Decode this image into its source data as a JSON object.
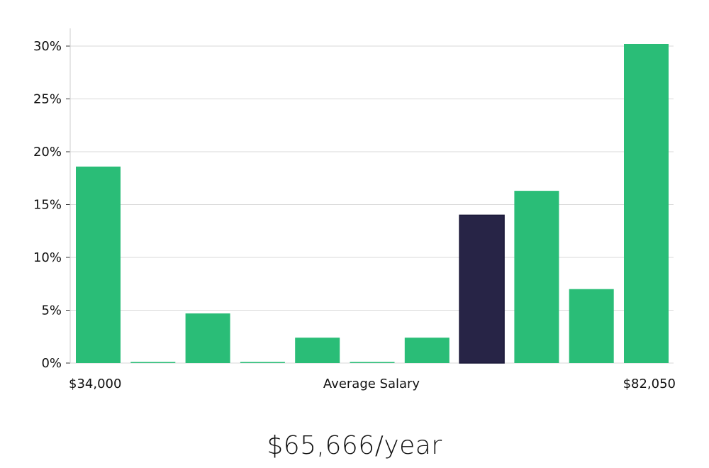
{
  "chart_data": {
    "type": "bar",
    "categories": [
      "1",
      "2",
      "3",
      "4",
      "5",
      "6",
      "7",
      "8",
      "9",
      "10",
      "11"
    ],
    "values": [
      18.6,
      0.1,
      4.7,
      0.1,
      2.4,
      0.1,
      2.4,
      14.0,
      16.3,
      7.0,
      30.2
    ],
    "highlight_index": 7,
    "xlabel": "Average Salary",
    "x_min_label": "$34,000",
    "x_max_label": "$82,050",
    "ylim": [
      0,
      30
    ],
    "yticks": [
      0,
      5,
      10,
      15,
      20,
      25,
      30
    ],
    "ytick_labels": [
      "0%",
      "5%",
      "10%",
      "15%",
      "20%",
      "25%",
      "30%"
    ],
    "grid": true,
    "colors": {
      "bar": "#2abd77",
      "highlight": "#272446",
      "grid": "#d9d9d9",
      "axis": "#cccccc"
    }
  },
  "headline": "$65,666/year"
}
